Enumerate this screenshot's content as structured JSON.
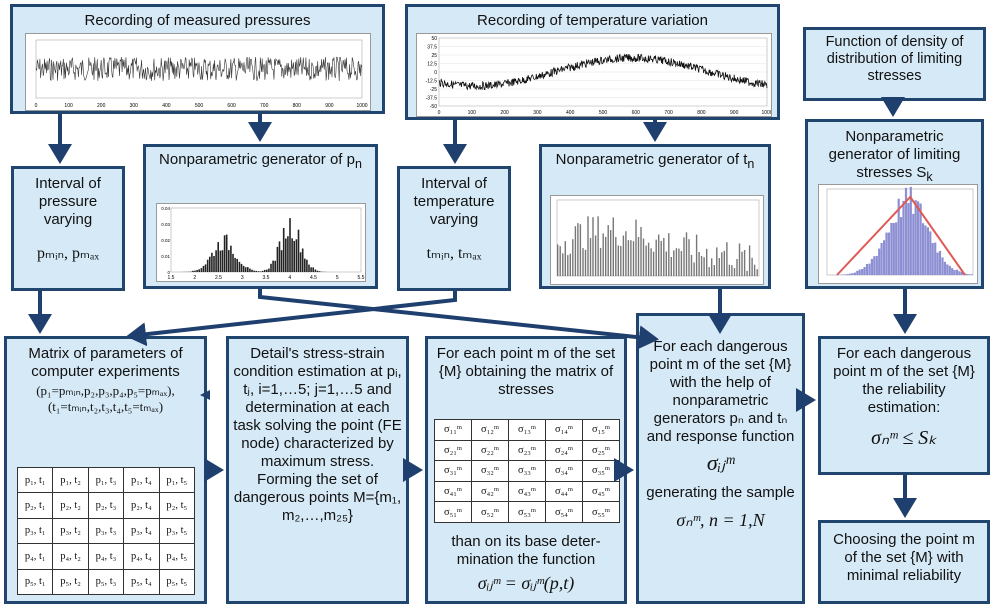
{
  "boxes": {
    "pressure_recording": "Recording of measured pressures",
    "temperature_recording": "Recording of temperature variation",
    "density_function": "Function of density of distribution of limiting stresses",
    "gen_limiting": "Nonparametric generator of limiting stresses S",
    "gen_limiting_sub": "k",
    "gen_pressure": "Nonparametric generator of p",
    "gen_pressure_sub": "n",
    "gen_temperature": "Nonparametric generator of t",
    "gen_temperature_sub": "n",
    "pressure_interval": "Interval of pressure varying",
    "pressure_limits": "p",
    "temperature_interval": "Interval of temperature varying",
    "matrix_params_title": "Matrix of parameters of computer experiments",
    "stress_strain": "Detail's stress-strain condition estimation at pᵢ, tⱼ, i=1,…5; j=1,…5 and determination at each task solving the point (FE node) characterized by maximum stress. Forming the set of dangerous points M={m₁, m₂,…,m₂₅}",
    "stress_matrix_title": "For each point m of the set {M} obtaining the matrix of stresses",
    "stress_matrix_footer": "than on its base deter-mination the function",
    "dangerous_generators_top": "For each dangerous point  m of the set {M} with the help of nonparametric generators pₙ and  tₙ and response function",
    "dangerous_generators_mid": "generating the sample",
    "reliability_estimation": "For each dangerous point m of the set {M} the reliability estimation:",
    "choosing_point": "Choosing the point m of the set {M} with minimal reliability"
  },
  "formulas": {
    "p_limits": "pₘᵢₙ,  pₘₐₓ",
    "t_limits": "tₘᵢₙ, tₘₐₓ",
    "p_values": "(p₁=pₘᵢₙ,p₂,p₃,p₄,p₅=pₘₐₓ),",
    "t_values": "(t₁=tₘᵢₙ,t₂,t₃,t₄,t₅=tₘₐₓ)",
    "sigma_func": "σᵢⱼᵐ = σᵢⱼᵐ(p,t)",
    "sigma_ij": "σᵢⱼᵐ",
    "sample": "σₙᵐ, n = 1,N",
    "reliability": "σₙᵐ ≤ Sₖ"
  },
  "param_matrix": [
    [
      "p₁, t₁",
      "p₁, t₂",
      "p₁, t₃",
      "p₁, t₄",
      "p₁, t₅"
    ],
    [
      "p₂, t₁",
      "p₂, t₂",
      "p₂, t₃",
      "p₂, t₄",
      "p₂, t₅"
    ],
    [
      "p₃, t₁",
      "p₃, t₂",
      "p₃, t₃",
      "p₃, t₄",
      "p₃, t₅"
    ],
    [
      "p₄, t₁",
      "p₄, t₂",
      "p₄, t₃",
      "p₄, t₄",
      "p₄, t₅"
    ],
    [
      "p₅, t₁",
      "p₅, t₂",
      "p₅, t₃",
      "p₅, t₄",
      "p₅, t₅"
    ]
  ],
  "stress_matrix": [
    [
      "σ₁₁ᵐ",
      "σ₁₂ᵐ",
      "σ₁₃ᵐ",
      "σ₁₄ᵐ",
      "σ₁₅ᵐ"
    ],
    [
      "σ₂₁ᵐ",
      "σ₂₂ᵐ",
      "σ₂₃ᵐ",
      "σ₂₄ᵐ",
      "σ₂₅ᵐ"
    ],
    [
      "σ₃₁ᵐ",
      "σ₃₂ᵐ",
      "σ₃₃ᵐ",
      "σ₃₄ᵐ",
      "σ₃₅ᵐ"
    ],
    [
      "σ₄₁ᵐ",
      "σ₄₂ᵐ",
      "σ₄₃ᵐ",
      "σ₄₄ᵐ",
      "σ₄₅ᵐ"
    ],
    [
      "σ₅₁ᵐ",
      "σ₅₂ᵐ",
      "σ₅₃ᵐ",
      "σ₅₄ᵐ",
      "σ₅₅ᵐ"
    ]
  ],
  "plots": {
    "pressure_x_ticks": [
      "0",
      "100",
      "200",
      "300",
      "400",
      "500",
      "600",
      "700",
      "800",
      "900",
      "1000"
    ],
    "temperature_x_ticks": [
      "0",
      "100",
      "200",
      "300",
      "400",
      "500",
      "600",
      "700",
      "800",
      "900",
      "1000"
    ],
    "temperature_y_ticks": [
      "50",
      "37.5",
      "25",
      "12.5",
      "0",
      "-12.5",
      "-25",
      "-37.5",
      "-50"
    ],
    "p_hist_x_ticks": [
      "1.5",
      "2",
      "2.5",
      "3",
      "3.5",
      "4",
      "4.5",
      "5",
      "5.5"
    ],
    "p_hist_y_ticks": [
      "0.04",
      "0.03",
      "0.02",
      "0.01",
      "0"
    ],
    "colors": {
      "border": "#20466f",
      "box_fill": "#d6e9f6",
      "arrow": "#1f3f6e",
      "hist_bar": "#222222",
      "limit_bar": "#8d8fd3",
      "limit_curve": "#e05a55"
    }
  }
}
